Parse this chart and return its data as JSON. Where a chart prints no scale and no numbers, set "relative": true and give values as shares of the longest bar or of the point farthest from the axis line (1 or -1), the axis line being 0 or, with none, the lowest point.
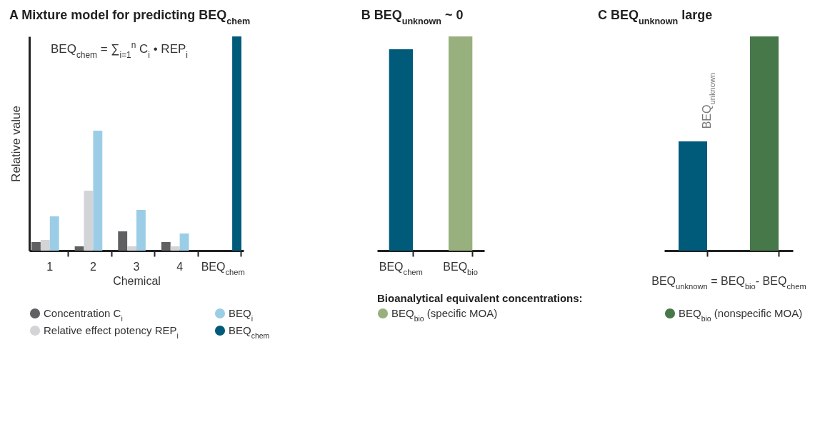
{
  "chart_data": [
    {
      "type": "bar",
      "title": "A  Mixture model for predicting BEQ$_{chem}$",
      "xlabel": "Chemical",
      "ylabel": "Relative value",
      "relative": true,
      "legend": "bottom",
      "categories": [
        "1",
        "2",
        "3",
        "4",
        "BEQ$_{chem}$"
      ],
      "annotations": [
        "BEQ$_{chem}$ = ∑$_{i=1}$$^{n}$ C$_{i}$ • REP$_{i}$"
      ],
      "series": [
        {
          "name": "Concentration C$_{i}$",
          "color": "#5f6062",
          "values": [
            0.04,
            0.02,
            0.09,
            0.04,
            null
          ]
        },
        {
          "name": "Relative effect potency REP$_{i}$",
          "color": "#d3d4d6",
          "values": [
            0.05,
            0.28,
            0.02,
            0.02,
            null
          ]
        },
        {
          "name": "BEQ$_{i}$",
          "color": "#9ccde6",
          "values": [
            0.16,
            0.56,
            0.19,
            0.08,
            null
          ]
        },
        {
          "name": "BEQ$_{chem}$",
          "color": "#005a7a",
          "values": [
            null,
            null,
            null,
            null,
            1
          ]
        }
      ]
    },
    {
      "type": "bar",
      "title": "B  BEQ$_{unknown}$ ~ 0",
      "relative": true,
      "legend": "bottom",
      "legend_title": "Bioanalytical equivalent concentrations:",
      "categories": [
        "BEQ$_{chem}$",
        "BEQ$_{bio}$"
      ],
      "series": [
        {
          "color": "#005a7a",
          "values": [
            0.94,
            null
          ]
        },
        {
          "name": "BEQ$_{bio}$ (specific MOA)",
          "color": "#98b07e",
          "values": [
            null,
            1
          ]
        }
      ]
    },
    {
      "type": "bar",
      "title": "C  BEQ$_{unknown}$ large",
      "xlabel": "BEQ$_{unknown}$ = BEQ$_{bio}$- BEQ$_{chem}$",
      "relative": true,
      "categories": [
        null,
        null
      ],
      "values": [
        0.51,
        1
      ],
      "colors": [
        "#005a7a",
        "#47784a"
      ],
      "annotations": [
        {
          "text": "BEQ$_{unknown}$"
        },
        "BEQ$_{bio}$ (nonspecific MOA)"
      ]
    }
  ]
}
